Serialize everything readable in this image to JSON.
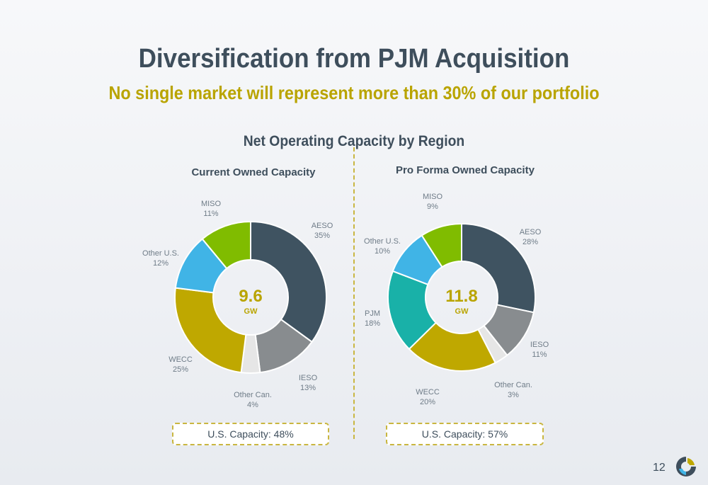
{
  "slide": {
    "title": "Diversification from PJM Acquisition",
    "subtitle": "No single market will represent more than 30% of our portfolio",
    "section_title": "Net Operating Capacity by Region",
    "page_number": "12"
  },
  "colors": {
    "AESO": "#3f5361",
    "IESO": "#888c8f",
    "Other Can.": "#e6e6e6",
    "WECC": "#bfa800",
    "PJM": "#19b1a8",
    "Other U.S.": "#40b4e6",
    "MISO": "#80bc00"
  },
  "chart_data": [
    {
      "type": "pie",
      "title": "Current Owned Capacity",
      "center_value": "9.6",
      "center_unit": "GW",
      "footer": "U.S. Capacity: 48%",
      "categories": [
        "AESO",
        "IESO",
        "Other Can.",
        "WECC",
        "Other U.S.",
        "MISO"
      ],
      "values": [
        35,
        13,
        4,
        25,
        12,
        11
      ],
      "labels": [
        "35%",
        "13%",
        "4%",
        "25%",
        "12%",
        "11%"
      ]
    },
    {
      "type": "pie",
      "title": "Pro Forma Owned Capacity",
      "center_value": "11.8",
      "center_unit": "GW",
      "footer": "U.S. Capacity: 57%",
      "categories": [
        "AESO",
        "IESO",
        "Other Can.",
        "WECC",
        "PJM",
        "Other U.S.",
        "MISO"
      ],
      "values": [
        28,
        11,
        3,
        20,
        18,
        10,
        9
      ],
      "labels": [
        "28%",
        "11%",
        "3%",
        "20%",
        "18%",
        "10%",
        "9%"
      ]
    }
  ]
}
